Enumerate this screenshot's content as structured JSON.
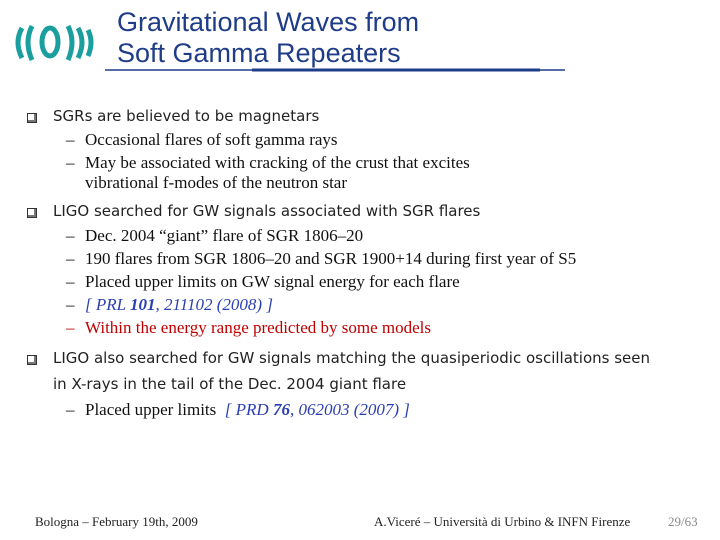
{
  "header": {
    "title_lines": [
      "Gravitational Waves from",
      "Soft Gamma Repeaters"
    ]
  },
  "bullets": [
    {
      "lines": [
        "SGRs are believed to be magnetars"
      ],
      "items": [
        {
          "lines": [
            "Occasional flares of soft gamma rays"
          ]
        },
        {
          "lines": [
            "May be associated with cracking of the crust that excites",
            "vibrational f-modes of the neutron star"
          ]
        }
      ]
    },
    {
      "lines": [
        "LIGO searched for GW signals associated with SGR flares"
      ],
      "items": [
        {
          "lines": [
            "Dec. 2004 “giant” flare of SGR 1806–20"
          ]
        },
        {
          "lines": [
            "190 flares from SGR 1806–20 and SGR 1900+14 during first year of S5"
          ]
        },
        {
          "lines": [
            "Placed upper limits on GW signal energy for each flare"
          ]
        },
        {
          "parts": [
            "[ PRL ",
            "101",
            ", 211102 (2008) ]"
          ]
        },
        {
          "lines": [
            "Within the energy range predicted by some models"
          ]
        }
      ]
    },
    {
      "lines": [
        "LIGO also searched for GW signals matching the quasiperiodic oscillations seen",
        "in X-rays in the tail of the Dec. 2004 giant flare"
      ],
      "items": [
        {
          "parts": [
            "Placed upper limits",
            "[ PRD ",
            "76",
            ", 062003 (2007) ]"
          ]
        }
      ]
    }
  ],
  "footer": {
    "left": "Bologna – February 19th, 2009",
    "center": "A.Viceré – Università di Urbino & INFN Firenze",
    "page": "29/63"
  }
}
